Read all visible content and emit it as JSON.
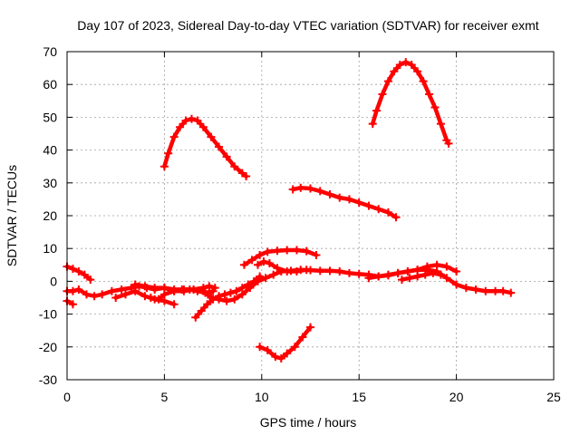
{
  "chart_data": {
    "type": "scatter",
    "title": "Day 107 of 2023, Sidereal Day-to-day VTEC variation (SDTVAR) for receiver exmt",
    "xlabel": "GPS time / hours",
    "ylabel": "SDTVAR / TECUs",
    "xlim": [
      0,
      25
    ],
    "ylim": [
      -30,
      70
    ],
    "xticks": [
      "0",
      "5",
      "10",
      "15",
      "20",
      "25"
    ],
    "yticks": [
      "-30",
      "-20",
      "-10",
      "0",
      "10",
      "20",
      "30",
      "40",
      "50",
      "60",
      "70"
    ],
    "grid": true,
    "marker": "plus",
    "color": "#ff0000",
    "series": [
      {
        "name": "arc1",
        "x": [
          5.0,
          5.2,
          5.5,
          5.8,
          6.1,
          6.4,
          6.7,
          7.0,
          7.4,
          7.8,
          8.2,
          8.6,
          9.0,
          9.2
        ],
        "y": [
          35,
          39,
          44,
          47,
          49,
          49.5,
          49,
          47,
          44,
          41,
          38,
          35,
          33,
          32
        ]
      },
      {
        "name": "arc2",
        "x": [
          15.7,
          15.9,
          16.2,
          16.5,
          16.8,
          17.1,
          17.4,
          17.7,
          18.0,
          18.3,
          18.6,
          18.9,
          19.2,
          19.5,
          19.6
        ],
        "y": [
          48,
          52,
          57,
          61,
          64,
          66,
          66.8,
          66,
          64,
          61,
          57,
          53,
          48,
          43,
          42
        ]
      },
      {
        "name": "arc3",
        "x": [
          11.6,
          12.0,
          12.5,
          13.0,
          13.5,
          14.0,
          14.5,
          15.0,
          15.5,
          16.0,
          16.5,
          16.9
        ],
        "y": [
          28,
          28.5,
          28.3,
          27.5,
          26.5,
          25.5,
          25,
          24,
          23,
          22,
          21,
          19.5
        ]
      },
      {
        "name": "arc4",
        "x": [
          9.9,
          10.3,
          10.7,
          11.0,
          11.3,
          11.7,
          12.1,
          12.5
        ],
        "y": [
          -20,
          -21,
          -23,
          -23.5,
          -22,
          -20,
          -17,
          -14
        ]
      },
      {
        "name": "arc5",
        "x": [
          0.0,
          0.3,
          0.6,
          0.9,
          1.2
        ],
        "y": [
          4.5,
          3.8,
          3,
          2,
          0.5
        ]
      },
      {
        "name": "arc6",
        "x": [
          9.1,
          9.5,
          9.9,
          10.3,
          10.8,
          11.3,
          11.8,
          12.3,
          12.8
        ],
        "y": [
          5,
          6.5,
          8,
          9,
          9.3,
          9.5,
          9.5,
          9.2,
          8
        ]
      },
      {
        "name": "arc7",
        "x": [
          9.8,
          10.1,
          10.4,
          10.8,
          11.3,
          11.8,
          12.3
        ],
        "y": [
          5,
          6,
          5.5,
          4,
          3,
          3,
          3.5
        ]
      },
      {
        "name": "arc8",
        "x": [
          0.0,
          0.3,
          0.6,
          1.0,
          1.4,
          1.8,
          2.3,
          2.8,
          3.3,
          3.7,
          4.1,
          4.5,
          5.0,
          5.5,
          6.0,
          6.5,
          7.0,
          7.4,
          7.8,
          8.2,
          8.6,
          9.0,
          9.4,
          9.8,
          10.2,
          10.6,
          11.0,
          11.5,
          12.0,
          12.5,
          13.0,
          13.5,
          14.0,
          14.5,
          15.0,
          15.5,
          16.0,
          16.5,
          17.0,
          17.5,
          18.0,
          18.5,
          19.0,
          19.5,
          20.0,
          20.5,
          21.0,
          21.5,
          22.0,
          22.4,
          22.8
        ],
        "y": [
          -3,
          -3,
          -2.5,
          -4,
          -4.5,
          -4,
          -3,
          -2.5,
          -2,
          -1.5,
          -2,
          -2.5,
          -2,
          -3,
          -3,
          -2.5,
          -3,
          -5,
          -5.5,
          -6,
          -5.5,
          -4,
          -2,
          0,
          1,
          2,
          3,
          3.2,
          3.5,
          3.4,
          3.2,
          3.2,
          3,
          2.5,
          2.2,
          2,
          1.5,
          1.8,
          2.5,
          3,
          3.5,
          3.5,
          3,
          1,
          -1,
          -2,
          -2.5,
          -3,
          -3,
          -3,
          -3.5
        ]
      },
      {
        "name": "arc9",
        "x": [
          0.0,
          0.3
        ],
        "y": [
          -6,
          -7
        ]
      },
      {
        "name": "arc10",
        "x": [
          2.5,
          3.0,
          3.5,
          4.0,
          4.5,
          5.0,
          5.5
        ],
        "y": [
          -5,
          -4,
          -3,
          -4.5,
          -5.5,
          -6,
          -7
        ]
      },
      {
        "name": "arc11",
        "x": [
          6.6,
          6.9,
          7.2,
          7.5,
          7.8,
          8.1,
          8.4,
          8.7,
          9.0,
          9.3,
          9.6,
          9.9
        ],
        "y": [
          -11,
          -9,
          -7,
          -5.5,
          -4.5,
          -4,
          -3.5,
          -3,
          -2,
          -1,
          0,
          1.5
        ]
      },
      {
        "name": "arc12",
        "x": [
          3.5,
          4.0,
          4.5,
          5.0,
          5.5,
          6.0,
          6.5,
          7.0,
          7.3,
          7.6
        ],
        "y": [
          -1,
          -1.5,
          -2,
          -2,
          -2.5,
          -2.5,
          -2.5,
          -2,
          -1.5,
          -2
        ]
      },
      {
        "name": "arc13",
        "x": [
          4.3,
          4.7,
          5.0,
          5.5,
          5.9,
          6.3,
          6.7,
          7.1,
          7.5
        ],
        "y": [
          -5,
          -5.5,
          -4,
          -3,
          -2.5,
          -2.5,
          -3,
          -3.5,
          -3
        ]
      },
      {
        "name": "arc14",
        "x": [
          15.5,
          16.0,
          16.5,
          17.0,
          17.5,
          18.0,
          18.5,
          19.0,
          19.5,
          20.0
        ],
        "y": [
          1,
          1.5,
          2,
          2.5,
          3,
          3.5,
          4.5,
          5,
          4.5,
          3
        ]
      },
      {
        "name": "arc15",
        "x": [
          17.2,
          17.6,
          18.0,
          18.4,
          18.8,
          19.2
        ],
        "y": [
          0.5,
          1,
          1.5,
          2,
          2.5,
          2
        ]
      }
    ]
  }
}
